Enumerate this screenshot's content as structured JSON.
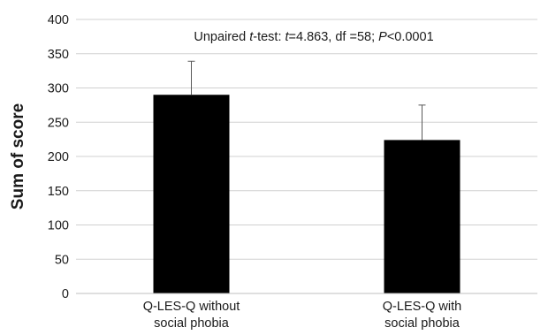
{
  "chart_data": {
    "type": "bar",
    "categories": [
      [
        "Q-LES-Q without",
        "social phobia"
      ],
      [
        "Q-LES-Q with",
        "social phobia"
      ]
    ],
    "values": [
      290,
      224
    ],
    "errors": [
      49,
      51
    ],
    "ylabel": "Sum of score",
    "xlabel": "",
    "ylim": [
      0,
      400
    ],
    "yticks": [
      0,
      50,
      100,
      150,
      200,
      250,
      300,
      350,
      400
    ],
    "grid": true,
    "bar_color": "#000000",
    "annotation": {
      "prefix": "Unpaired ",
      "t_italic": "t",
      "mid1": "-test: ",
      "t2_italic": "t",
      "mid2": "=4.863, df =58; ",
      "p_italic": "P",
      "suffix": "<0.0001"
    }
  }
}
